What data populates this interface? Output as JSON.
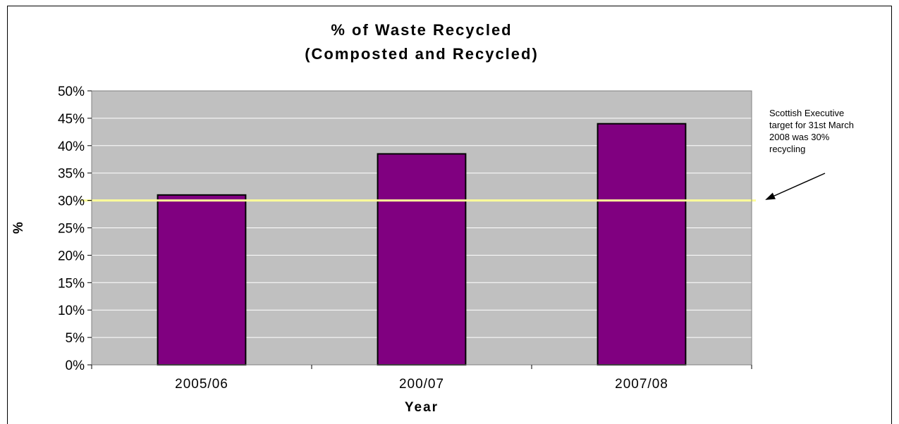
{
  "chart_data": {
    "type": "bar",
    "title": [
      "% of Waste Recycled",
      "(Composted and Recycled)"
    ],
    "xlabel": "Year",
    "ylabel": "%",
    "categories": [
      "2005/06",
      "200/07",
      "2007/08"
    ],
    "values": [
      31,
      38.5,
      44
    ],
    "ylim": [
      0,
      50
    ],
    "yticks": [
      "0%",
      "5%",
      "10%",
      "15%",
      "20%",
      "25%",
      "30%",
      "35%",
      "40%",
      "45%",
      "50%"
    ],
    "grid": true,
    "reference_line": {
      "value": 30,
      "color": "#ffff99"
    },
    "annotation": "Scottish Executive target for  31st March 2008 was 30% recycling",
    "annotation_lines": [
      "Scottish Executive",
      "target for  31st March",
      "2008 was 30%",
      "recycling"
    ],
    "colors": {
      "bar": "#800080",
      "plot_background": "#c0c0c0",
      "gridline": "#ffffff"
    }
  }
}
